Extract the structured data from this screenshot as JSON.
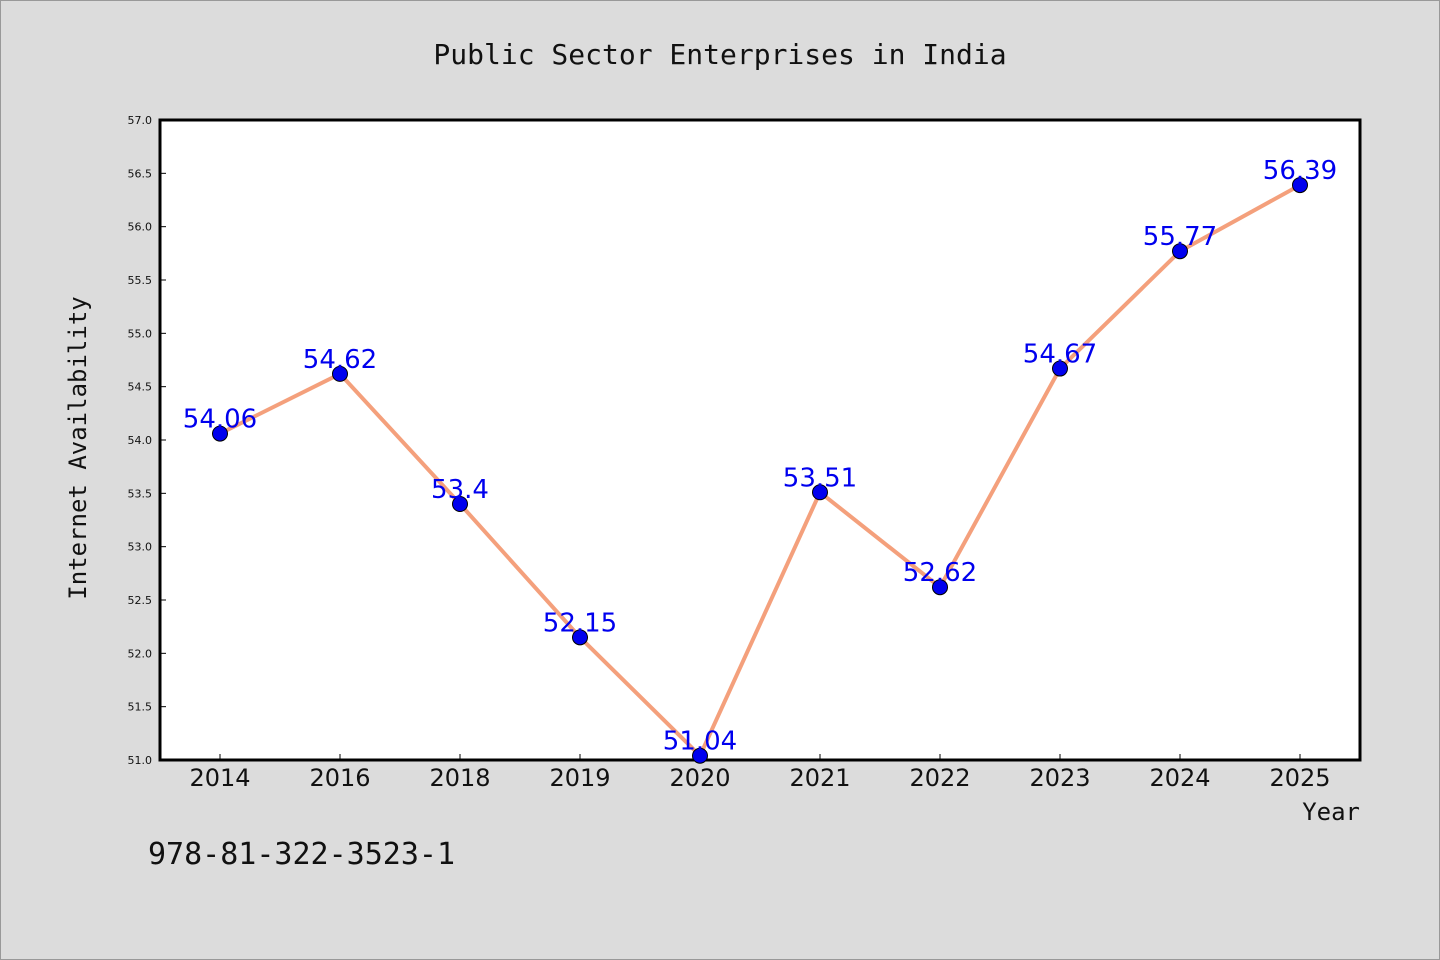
{
  "chart_data": {
    "type": "line",
    "title": "Public Sector Enterprises in India",
    "xlabel": "Year",
    "ylabel": "Internet Availability",
    "categories": [
      "2014",
      "2016",
      "2018",
      "2019",
      "2020",
      "2021",
      "2022",
      "2023",
      "2024",
      "2025"
    ],
    "series": [
      {
        "values": [
          54.06,
          54.62,
          53.4,
          52.15,
          51.04,
          53.51,
          52.62,
          54.67,
          55.77,
          56.39
        ]
      }
    ],
    "data_labels": [
      "54.06",
      "54.62",
      "53.4",
      "52.15",
      "51.04",
      "53.51",
      "52.62",
      "54.67",
      "55.77",
      "56.39"
    ],
    "ylim": [
      51.0,
      57.0
    ],
    "yticks": [
      51.0,
      51.5,
      52.0,
      52.5,
      53.0,
      53.5,
      54.0,
      54.5,
      55.0,
      55.5,
      56.0,
      56.5,
      57.0
    ],
    "ytick_labels": [
      "51.0",
      "51.5",
      "52.0",
      "52.5",
      "53.0",
      "53.5",
      "54.0",
      "54.5",
      "55.0",
      "55.5",
      "56.0",
      "56.5",
      "57.0"
    ],
    "grid": false,
    "legend": "none",
    "colors": {
      "line": "#f4a07c",
      "marker": "#0000ee",
      "label": "#0000ee",
      "plot_bg": "#ffffff",
      "figure_bg": "#dcdcdc"
    }
  },
  "footer": {
    "isbn": "978-81-322-3523-1"
  }
}
